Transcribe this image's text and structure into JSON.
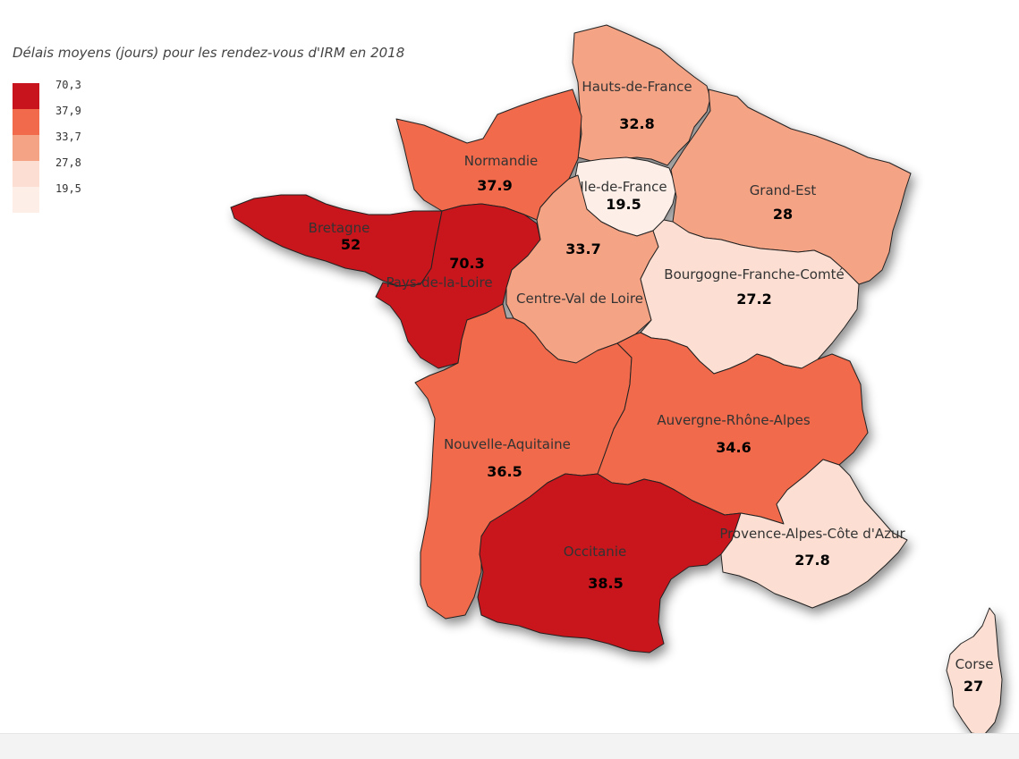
{
  "map": {
    "title": "Délais moyens (jours) pour les rendez-vous d'IRM en 2018",
    "legend": [
      {
        "label": "70,3",
        "color": "#c8141c"
      },
      {
        "label": "37,9",
        "color": "#f06a4b"
      },
      {
        "label": "33,7",
        "color": "#f5a385"
      },
      {
        "label": "27,8",
        "color": "#fcdfd2"
      },
      {
        "label": "19,5",
        "color": "#fdeee7"
      }
    ],
    "regions": [
      {
        "id": "hauts-de-france",
        "name": "Hauts-de-France",
        "value": "32.8",
        "color": "#f5a385"
      },
      {
        "id": "normandie",
        "name": "Normandie",
        "value": "37.9",
        "color": "#f06a4b"
      },
      {
        "id": "ile-de-france",
        "name": "Ile-de-France",
        "value": "19.5",
        "color": "#fdeee7"
      },
      {
        "id": "grand-est",
        "name": "Grand-Est",
        "value": "28",
        "color": "#f5a385"
      },
      {
        "id": "bretagne",
        "name": "Bretagne",
        "value": "52",
        "color": "#c8141c"
      },
      {
        "id": "pays-de-la-loire",
        "name": "Pays-de-la-Loire",
        "value": "70.3",
        "color": "#c8141c"
      },
      {
        "id": "centre-val-de-loire",
        "name": "Centre-Val de Loire",
        "value": "33.7",
        "color": "#f5a385"
      },
      {
        "id": "bourgogne-franche-comte",
        "name": "Bourgogne-Franche-Comté",
        "value": "27.2",
        "color": "#fcdfd2"
      },
      {
        "id": "nouvelle-aquitaine",
        "name": "Nouvelle-Aquitaine",
        "value": "36.5",
        "color": "#f06a4b"
      },
      {
        "id": "auvergne-rhone-alpes",
        "name": "Auvergne-Rhône-Alpes",
        "value": "34.6",
        "color": "#f06a4b"
      },
      {
        "id": "occitanie",
        "name": "Occitanie",
        "value": "38.5",
        "color": "#c8141c"
      },
      {
        "id": "provence-alpes-cote-d-azur",
        "name": "Provence-Alpes-Côte d'Azur",
        "value": "27.8",
        "color": "#fcdfd2"
      },
      {
        "id": "corse",
        "name": "Corse",
        "value": "27",
        "color": "#fcdfd2"
      }
    ]
  }
}
